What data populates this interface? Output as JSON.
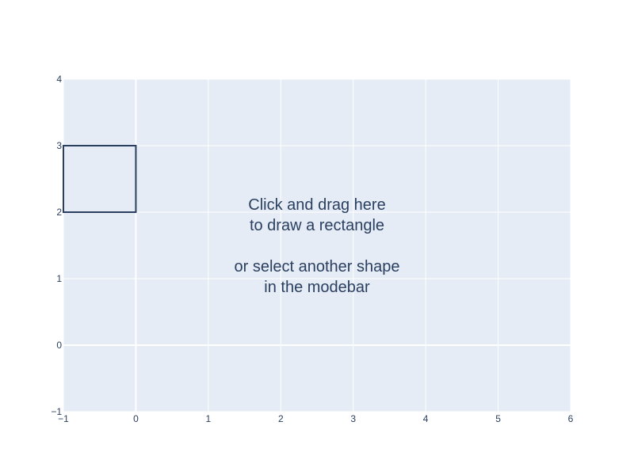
{
  "chart_data": {
    "type": "scatter",
    "title": "",
    "xlabel": "",
    "ylabel": "",
    "xlim": [
      -1,
      6
    ],
    "ylim": [
      -1,
      4
    ],
    "x_ticks": [
      -1,
      0,
      1,
      2,
      3,
      4,
      5,
      6
    ],
    "y_ticks": [
      -1,
      0,
      1,
      2,
      3,
      4
    ],
    "x_tick_labels": [
      "−1",
      "0",
      "1",
      "2",
      "3",
      "4",
      "5",
      "6"
    ],
    "y_tick_labels": [
      "−1",
      "0",
      "1",
      "2",
      "3",
      "4"
    ],
    "grid": true,
    "plot_bgcolor": "#e5ecf6",
    "gridcolor": "#ffffff",
    "shapes": [
      {
        "type": "rect",
        "x0": -1,
        "x1": 0,
        "y0": 2,
        "y1": 3,
        "line_color": "#2a3f5f"
      }
    ],
    "annotation": {
      "x": 2.5,
      "y": 1.5,
      "lines": [
        "Click and drag here",
        "to draw a rectangle",
        "",
        "or select another shape",
        "in the modebar"
      ]
    }
  }
}
